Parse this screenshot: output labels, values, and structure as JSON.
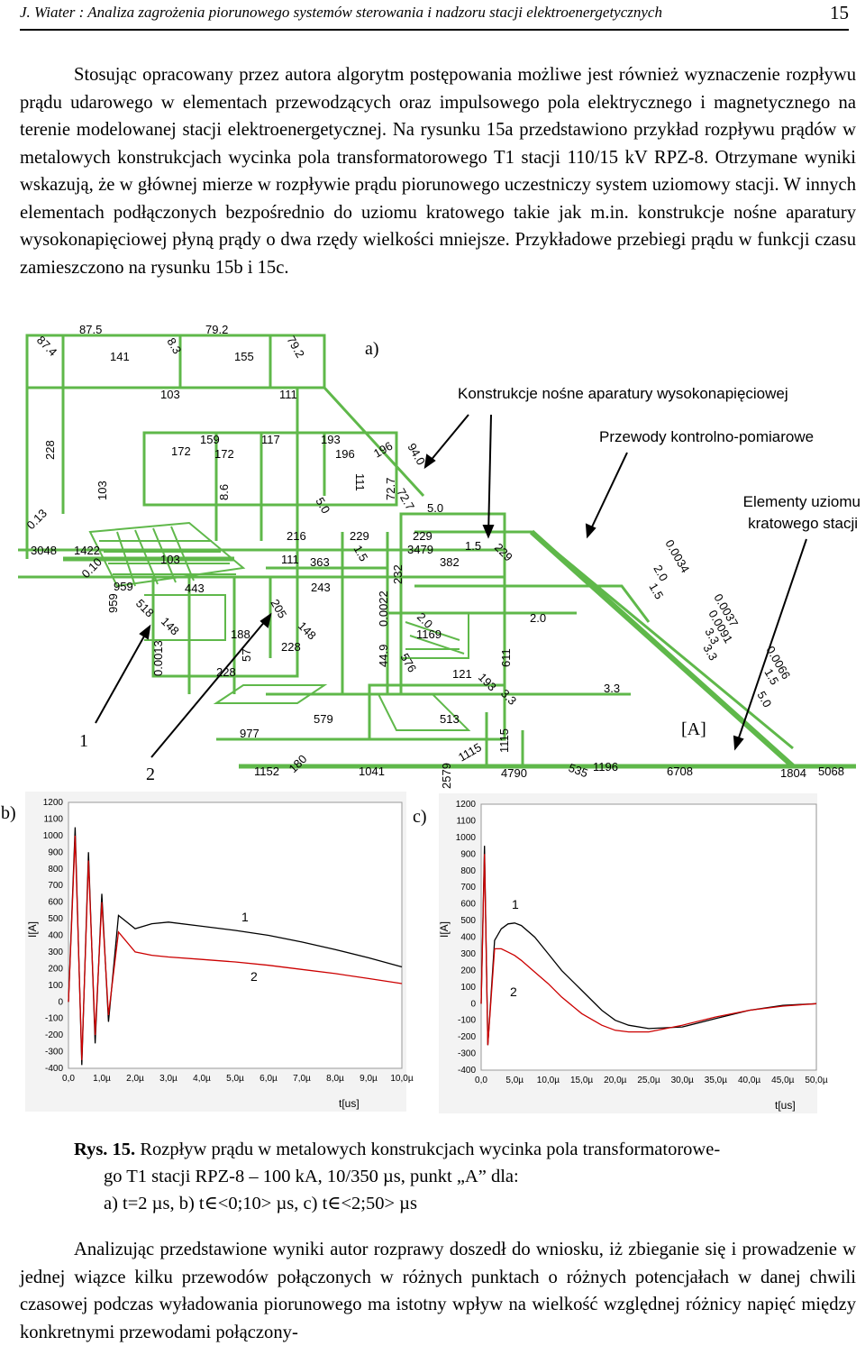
{
  "header": {
    "title": "J. Wiater : Analiza zagrożenia piorunowego systemów sterowania i nadzoru stacji elektroenergetycznych",
    "page_number": "15"
  },
  "paragraph1": "Stosując opracowany przez autora algorytm postępowania możliwe jest również wyznaczenie rozpływu prądu udarowego w elementach przewodzących oraz impulsowego pola elektrycznego i magnetycznego na terenie modelowanej stacji elektroenergetycznej. Na rysunku 15a przedstawiono przykład rozpływu prądów w metalowych konstrukcjach wycinka pola transformatorowego T1 stacji 110/15 kV RPZ-8. Otrzymane wyniki wskazują, że w głównej mierze w rozpływie prądu piorunowego uczestniczy system uziomowy stacji. W innych elementach podłączonych bezpośrednio do uziomu kratowego takie jak m.in. konstrukcje nośne aparatury wysokonapięciowej płyną prądy o dwa rzędy wielkości mniejsze. Przykładowe przebiegi prądu w funkcji czasu zamieszczono na rysunku 15b i 15c.",
  "figure_a": {
    "label": "a)",
    "unit": "[A]",
    "callouts": [
      "Konstrukcje nośne aparatury wysokonapięciowej",
      "Przewody kontrolno-pomiarowe",
      "Elementy uziomu",
      "kratowego stacji"
    ],
    "pointers": [
      "1",
      "2"
    ],
    "values": [
      "87.4",
      "87.5",
      "79.2",
      "8.3",
      "79.2",
      "141",
      "155",
      "103",
      "111",
      "228",
      "159",
      "117",
      "193",
      "172",
      "172",
      "196",
      "196",
      "94.0",
      "103",
      "8.6",
      "111",
      "72.7",
      "72.7",
      "5.0",
      "5.0",
      "0.13",
      "3048",
      "1422",
      "216",
      "229",
      "229",
      "1.5",
      "3479",
      "1.5",
      "229",
      "103",
      "111",
      "363",
      "232",
      "382",
      "0.10",
      "959",
      "443",
      "243",
      "959",
      "518",
      "205",
      "0.0022",
      "2.0",
      "2.0",
      "148",
      "148",
      "188",
      "1169",
      "0.0013",
      "228",
      "57",
      "44.9",
      "576",
      "611",
      "228",
      "121",
      "193",
      "3.3",
      "3.3",
      "977",
      "579",
      "513",
      "1115",
      "1152",
      "180",
      "1041",
      "2579",
      "1115",
      "4790",
      "535",
      "1196",
      "6708",
      "1804",
      "5068",
      "0.0034",
      "2.0",
      "1.5",
      "0.0037",
      "0.0091",
      "3.3",
      "3.3",
      "0.0066",
      "1.5",
      "5.0"
    ]
  },
  "chart_data": [
    {
      "panel": "b)",
      "type": "line",
      "title": "",
      "xlabel": "t[us]",
      "ylabel": "I[A]",
      "xlim": [
        0,
        10
      ],
      "ylim": [
        -400,
        1200
      ],
      "x_tick_labels": [
        "0,0",
        "1,0µ",
        "2,0µ",
        "3,0µ",
        "4,0µ",
        "5,0µ",
        "6,0µ",
        "7,0µ",
        "8,0µ",
        "9,0µ",
        "10,0µ"
      ],
      "y_tick_labels": [
        "-400",
        "-300",
        "-200",
        "-100",
        "0",
        "100",
        "200",
        "300",
        "400",
        "500",
        "600",
        "700",
        "800",
        "900",
        "1000",
        "1100",
        "1200"
      ],
      "series": [
        {
          "name": "1",
          "color": "#000000",
          "x": [
            0,
            0.2,
            0.4,
            0.6,
            0.8,
            1,
            1.2,
            1.5,
            2,
            2.5,
            3,
            4,
            5,
            6,
            7,
            8,
            9,
            10
          ],
          "values": [
            0,
            1050,
            -380,
            900,
            -250,
            650,
            -120,
            520,
            440,
            470,
            480,
            455,
            430,
            400,
            360,
            315,
            265,
            210
          ]
        },
        {
          "name": "2",
          "color": "#cc0000",
          "x": [
            0,
            0.2,
            0.4,
            0.6,
            0.8,
            1,
            1.2,
            1.5,
            2,
            2.5,
            3,
            4,
            5,
            6,
            7,
            8,
            9,
            10
          ],
          "values": [
            0,
            1000,
            -350,
            850,
            -200,
            600,
            -80,
            420,
            300,
            280,
            270,
            255,
            240,
            220,
            195,
            170,
            140,
            110
          ]
        }
      ]
    },
    {
      "panel": "c)",
      "type": "line",
      "title": "",
      "xlabel": "t[us]",
      "ylabel": "I[A]",
      "xlim": [
        0,
        50
      ],
      "ylim": [
        -400,
        1200
      ],
      "x_tick_labels": [
        "0,0",
        "5,0µ",
        "10,0µ",
        "15,0µ",
        "20,0µ",
        "25,0µ",
        "30,0µ",
        "35,0µ",
        "40,0µ",
        "45,0µ",
        "50,0µ"
      ],
      "y_tick_labels": [
        "-400",
        "-300",
        "-200",
        "-100",
        "0",
        "100",
        "200",
        "300",
        "400",
        "500",
        "600",
        "700",
        "800",
        "900",
        "1000",
        "1100",
        "1200"
      ],
      "series": [
        {
          "name": "1",
          "color": "#000000",
          "x": [
            0,
            0.5,
            1,
            2,
            3,
            4,
            5,
            6,
            8,
            10,
            12,
            15,
            18,
            20,
            22,
            25,
            30,
            35,
            40,
            45,
            50
          ],
          "values": [
            0,
            950,
            -250,
            380,
            450,
            480,
            485,
            470,
            400,
            300,
            200,
            80,
            -40,
            -100,
            -130,
            -150,
            -140,
            -90,
            -40,
            -10,
            0
          ]
        },
        {
          "name": "2",
          "color": "#cc0000",
          "x": [
            0,
            0.5,
            1,
            2,
            3,
            4,
            5,
            6,
            8,
            10,
            12,
            15,
            18,
            20,
            22,
            25,
            30,
            35,
            40,
            45,
            50
          ],
          "values": [
            0,
            900,
            -250,
            330,
            330,
            310,
            290,
            260,
            190,
            120,
            40,
            -60,
            -130,
            -160,
            -170,
            -170,
            -130,
            -80,
            -40,
            -15,
            0
          ]
        }
      ]
    }
  ],
  "caption": {
    "label": "Rys. 15.",
    "text1": "Rozpływ prądu w metalowych konstrukcjach wycinka pola transformatorowe-",
    "text2": "go T1 stacji  RPZ-8 – 100 kA, 10/350 µs, punkt „A” dla:",
    "text3": "a) t=2 µs, b) t∈<0;10> µs, c) t∈<2;50> µs"
  },
  "paragraph2": "Analizując przedstawione wyniki autor rozprawy doszedł do wniosku, iż zbieganie się i prowadzenie w jednej wiązce kilku przewodów połączonych w różnych punktach o różnych potencjałach w danej chwili czasowej podczas wyładowania piorunowego ma istotny wpływ na wielkość względnej różnicy napięć między konkretnymi przewodami połączony-",
  "colors": {
    "structure": "#5fb84a",
    "series1": "#000000",
    "series2": "#cc0000"
  }
}
